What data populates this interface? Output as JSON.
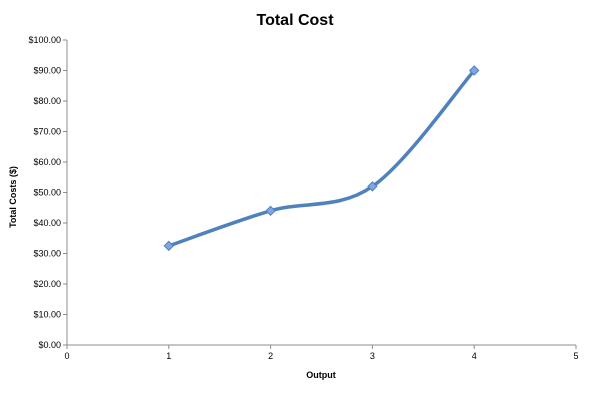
{
  "chart_data": {
    "type": "line",
    "title": "Total Cost",
    "xlabel": "Output",
    "ylabel": "Total Costs ($)",
    "xlim": [
      0,
      5
    ],
    "ylim": [
      0,
      100
    ],
    "x_ticks": [
      "0",
      "1",
      "2",
      "3",
      "4",
      "5"
    ],
    "y_ticks": [
      "$0.00",
      "$10.00",
      "$20.00",
      "$30.00",
      "$40.00",
      "$50.00",
      "$60.00",
      "$70.00",
      "$80.00",
      "$90.00",
      "$100.00"
    ],
    "grid": false,
    "legend": "none",
    "smooth": true,
    "series": [
      {
        "x": [
          1,
          2,
          3,
          4
        ],
        "values": [
          32.5,
          44,
          52,
          90
        ],
        "color": "#4f81bd",
        "marker": "diamond",
        "marker_color": "#7ea6e0"
      }
    ]
  }
}
